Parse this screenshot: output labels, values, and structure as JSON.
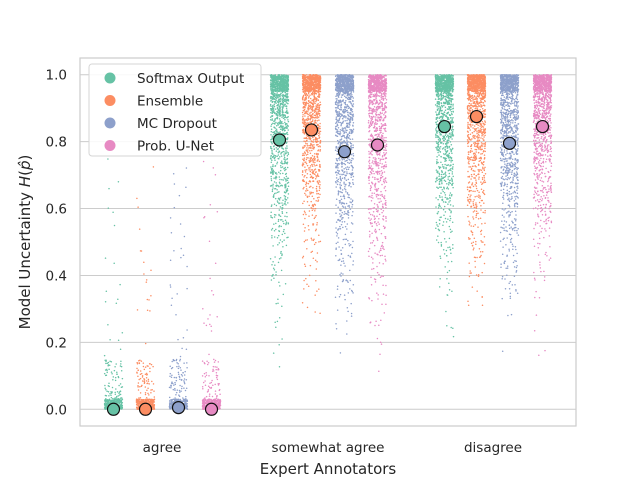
{
  "chart_data": {
    "type": "scatter",
    "subtype": "strip-plot-with-means",
    "xlabel": "Expert Annotators",
    "ylabel": "Model Uncertainty H(p̂)",
    "ylabel_parts": {
      "main": "Model Uncertainty ",
      "func": "H",
      "open": "(",
      "var": "p̂",
      "close": ")"
    },
    "ylim": [
      -0.05,
      1.05
    ],
    "yticks": [
      0.0,
      0.2,
      0.4,
      0.6,
      0.8,
      1.0
    ],
    "ytick_labels": [
      "0.0",
      "0.2",
      "0.4",
      "0.6",
      "0.8",
      "1.0"
    ],
    "grid": true,
    "legend_position": "top-left",
    "categories": [
      "agree",
      "somewhat agree",
      "disagree"
    ],
    "series": [
      {
        "name": "Softmax Output",
        "color": "#66c2a5",
        "means": [
          0.0,
          0.805,
          0.845
        ]
      },
      {
        "name": "Ensemble",
        "color": "#fc8d62",
        "means": [
          0.0,
          0.835,
          0.875
        ]
      },
      {
        "name": "MC Dropout",
        "color": "#8da0cb",
        "means": [
          0.005,
          0.77,
          0.795
        ]
      },
      {
        "name": "Prob. U-Net",
        "color": "#e78ac3",
        "means": [
          0.0,
          0.79,
          0.845
        ]
      }
    ]
  }
}
